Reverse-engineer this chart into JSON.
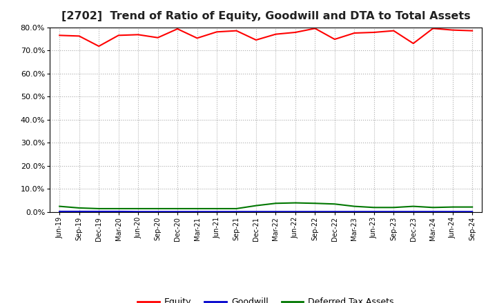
{
  "title": "[2702]  Trend of Ratio of Equity, Goodwill and DTA to Total Assets",
  "x_labels": [
    "Jun-19",
    "Sep-19",
    "Dec-19",
    "Mar-20",
    "Jun-20",
    "Sep-20",
    "Dec-20",
    "Mar-21",
    "Jun-21",
    "Sep-21",
    "Dec-21",
    "Mar-22",
    "Jun-22",
    "Sep-22",
    "Dec-22",
    "Mar-23",
    "Jun-23",
    "Sep-23",
    "Dec-23",
    "Mar-24",
    "Jun-24",
    "Sep-24"
  ],
  "equity": [
    76.5,
    76.2,
    71.8,
    76.5,
    76.8,
    75.5,
    79.3,
    75.3,
    78.0,
    78.5,
    74.5,
    77.0,
    77.8,
    79.5,
    74.8,
    77.5,
    77.8,
    78.5,
    73.0,
    79.5,
    78.8,
    78.5
  ],
  "goodwill": [
    0.3,
    0.3,
    0.3,
    0.3,
    0.2,
    0.2,
    0.2,
    0.2,
    0.2,
    0.2,
    0.2,
    0.2,
    0.2,
    0.2,
    0.2,
    0.2,
    0.2,
    0.2,
    0.2,
    0.2,
    0.2,
    0.2
  ],
  "dta": [
    2.5,
    1.8,
    1.5,
    1.5,
    1.5,
    1.5,
    1.5,
    1.5,
    1.5,
    1.5,
    2.8,
    3.8,
    4.0,
    3.8,
    3.5,
    2.5,
    2.0,
    2.0,
    2.5,
    2.0,
    2.2,
    2.2
  ],
  "equity_color": "#FF0000",
  "goodwill_color": "#0000CC",
  "dta_color": "#007700",
  "ylim_min": 0.0,
  "ylim_max": 80.0,
  "ytick_interval": 10.0,
  "background_color": "#FFFFFF",
  "plot_bg_color": "#FFFFFF",
  "grid_color": "#AAAAAA",
  "title_fontsize": 11.5,
  "legend_labels": [
    "Equity",
    "Goodwill",
    "Deferred Tax Assets"
  ]
}
